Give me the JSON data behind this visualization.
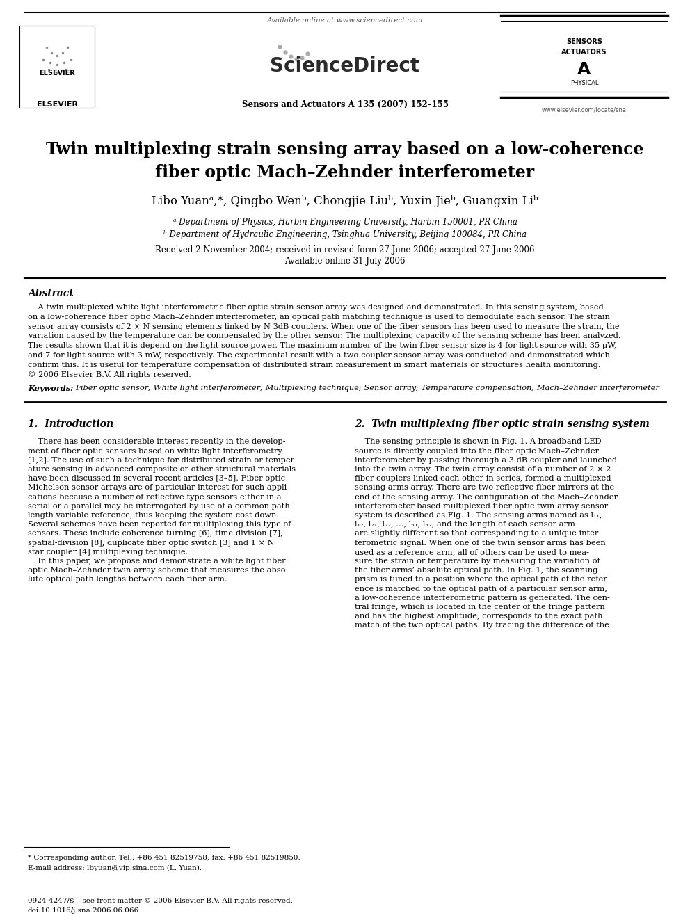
{
  "title_line1": "Twin multiplexing strain sensing array based on a low-coherence",
  "title_line2": "fiber optic Mach–Zehnder interferometer",
  "affil_a": "ᵃ Department of Physics, Harbin Engineering University, Harbin 150001, PR China",
  "affil_b": "ᵇ Department of Hydraulic Engineering, Tsinghua University, Beijing 100084, PR China",
  "dates": "Received 2 November 2004; received in revised form 27 June 2006; accepted 27 June 2006",
  "online": "Available online 31 July 2006",
  "abstract_title": "Abstract",
  "abstract_text": "    A twin multiplexed white light interferometric fiber optic strain sensor array was designed and demonstrated. In this sensing system, based\non a low-coherence fiber optic Mach–Zehnder interferometer, an optical path matching technique is used to demodulate each sensor. The strain\nsensor array consists of 2 × N sensing elements linked by N 3dB couplers. When one of the fiber sensors has been used to measure the strain, the\nvariation caused by the temperature can be compensated by the other sensor. The multiplexing capacity of the sensing scheme has been analyzed.\nThe results shown that it is depend on the light source power. The maximum number of the twin fiber sensor size is 4 for light source with 35 μW,\nand 7 for light source with 3 mW, respectively. The experimental result with a two-coupler sensor array was conducted and demonstrated which\nconfirm this. It is useful for temperature compensation of distributed strain measurement in smart materials or structures health monitoring.\n© 2006 Elsevier B.V. All rights reserved.",
  "keywords_label": "Keywords:  ",
  "keywords_text": "Fiber optic sensor; White light interferometer; Multiplexing technique; Sensor array; Temperature compensation; Mach–Zehnder interferometer",
  "section1_title": "1.  Introduction",
  "section2_title": "2.  Twin multiplexing fiber optic strain sensing system",
  "intro_text": "    There has been considerable interest recently in the develop-\nment of fiber optic sensors based on white light interferometry\n[1,2]. The use of such a technique for distributed strain or temper-\nature sensing in advanced composite or other structural materials\nhave been discussed in several recent articles [3–5]. Fiber optic\nMichelson sensor arrays are of particular interest for such appli-\ncations because a number of reflective-type sensors either in a\nserial or a parallel may be interrogated by use of a common path-\nlength variable reference, thus keeping the system cost down.\nSeveral schemes have been reported for multiplexing this type of\nsensors. These include coherence turning [6], time-division [7],\nspatial-division [8], duplicate fiber optic switch [3] and 1 × N\nstar coupler [4] multiplexing technique.\n    In this paper, we propose and demonstrate a white light fiber\noptic Mach–Zehnder twin-array scheme that measures the abso-\nlute optical path lengths between each fiber arm.",
  "section2_text": "    The sensing principle is shown in Fig. 1. A broadband LED\nsource is directly coupled into the fiber optic Mach–Zehnder\ninterferometer by passing thorough a 3 dB coupler and launched\ninto the twin-array. The twin-array consist of a number of 2 × 2\nfiber couplers linked each other in series, formed a multiplexed\nsensing arms array. There are two reflective fiber mirrors at the\nend of the sensing array. The configuration of the Mach–Zehnder\ninterferometer based multiplexed fiber optic twin-array sensor\nsystem is described as Fig. 1. The sensing arms named as l₁₁,\nl₁₂, l₂₁, l₂₂, ..., lₙ₁, lₙ₂, and the length of each sensor arm\nare slightly different so that corresponding to a unique inter-\nferometric signal. When one of the twin sensor arms has been\nused as a reference arm, all of others can be used to mea-\nsure the strain or temperature by measuring the variation of\nthe fiber arms’ absolute optical path. In Fig. 1, the scanning\nprism is tuned to a position where the optical path of the refer-\nence is matched to the optical path of a particular sensor arm,\na low-coherence interferometric pattern is generated. The cen-\ntral fringe, which is located in the center of the fringe pattern\nand has the highest amplitude, corresponds to the exact path\nmatch of the two optical paths. By tracing the difference of the",
  "footnote_star": "* Corresponding author. Tel.: +86 451 82519758; fax: +86 451 82519850.",
  "footnote_email": "E-mail address: lbyuan@vip.sina.com (L. Yuan).",
  "footer_issn": "0924-4247/$ – see front matter © 2006 Elsevier B.V. All rights reserved.",
  "footer_doi": "doi:10.1016/j.sna.2006.06.066",
  "journal_info": "Sensors and Actuators A 135 (2007) 152–155",
  "available_online": "Available online at www.sciencedirect.com",
  "elsevier_text": "ELSEVIER",
  "background_color": "#ffffff",
  "text_color": "#000000",
  "blue_color": "#0000cc"
}
